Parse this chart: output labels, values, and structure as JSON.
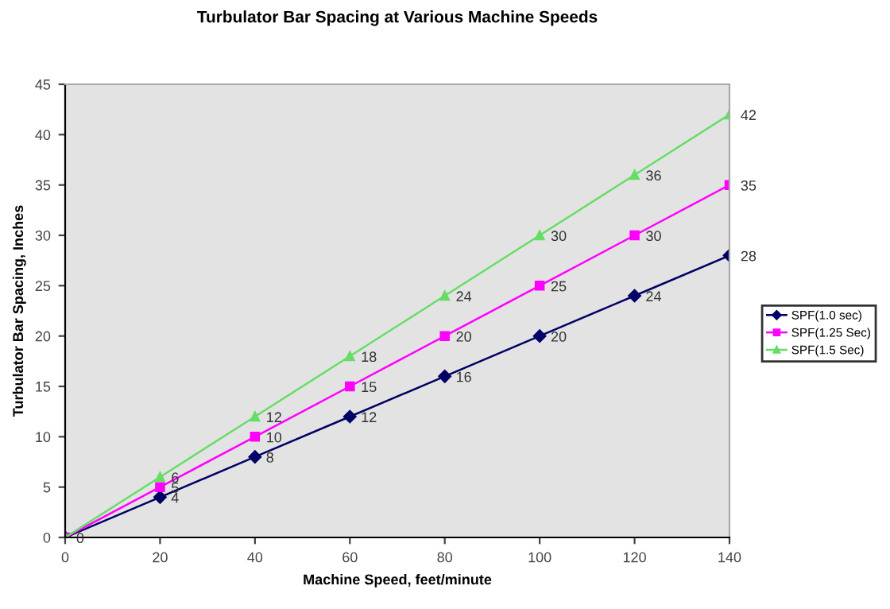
{
  "chart_data": {
    "type": "line",
    "title": "Turbulator Bar Spacing at Various Machine Speeds",
    "xlabel": "Machine Speed, feet/minute",
    "ylabel": "Turbulator Bar Spacing, Inches",
    "x": [
      0,
      20,
      40,
      60,
      80,
      100,
      120,
      140
    ],
    "series": [
      {
        "name": "SPF(1.0 sec)",
        "color": "#000066",
        "marker": "diamond",
        "values": [
          0,
          4,
          8,
          12,
          16,
          20,
          24,
          28
        ],
        "value_labels": [
          "0",
          "4",
          "8",
          "12",
          "16",
          "20",
          "24",
          "28"
        ]
      },
      {
        "name": "SPF(1.25 Sec)",
        "color": "#ff00ff",
        "marker": "square",
        "values": [
          0,
          5,
          10,
          15,
          20,
          25,
          30,
          35
        ],
        "value_labels": [
          null,
          "5",
          "10",
          "15",
          "20",
          "25",
          "30",
          "35"
        ]
      },
      {
        "name": "SPF(1.5 Sec)",
        "color": "#66dd66",
        "marker": "triangle",
        "values": [
          0,
          6,
          12,
          18,
          24,
          30,
          36,
          42
        ],
        "value_labels": [
          null,
          "6",
          "12",
          "18",
          "24",
          "30",
          "36",
          "42"
        ]
      }
    ],
    "xlim": [
      0,
      140
    ],
    "xticks": [
      0,
      20,
      40,
      60,
      80,
      100,
      120,
      140
    ],
    "ylim": [
      0,
      45
    ],
    "yticks": [
      0,
      5,
      10,
      15,
      20,
      25,
      30,
      35,
      40,
      45
    ],
    "grid": false,
    "legend": "right",
    "line_style": "solid"
  }
}
